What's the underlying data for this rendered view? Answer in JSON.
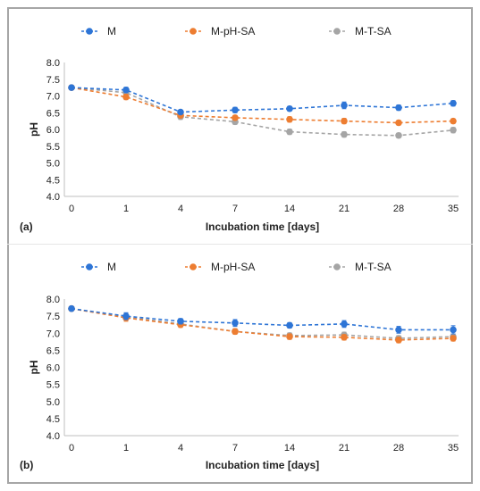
{
  "chart_data": [
    {
      "type": "line",
      "panel_label": "(a)",
      "categories": [
        "0",
        "1",
        "4",
        "7",
        "14",
        "21",
        "28",
        "35"
      ],
      "xlabel": "Incubation time [days]",
      "ylabel": "pH",
      "ylim": [
        4.0,
        8.0
      ],
      "yticks": [
        "4.0",
        "4.5",
        "5.0",
        "5.5",
        "6.0",
        "6.5",
        "7.0",
        "7.5",
        "8.0"
      ],
      "grid": false,
      "legend_position": "top",
      "series": [
        {
          "name": "M",
          "color": "#2e75d6",
          "values": [
            7.25,
            7.18,
            6.52,
            6.58,
            6.62,
            6.72,
            6.65,
            6.78
          ],
          "errors": [
            0.06,
            0.08,
            0.05,
            0.08,
            0.07,
            0.1,
            0.08,
            0.08
          ]
        },
        {
          "name": "M-pH-SA",
          "color": "#ed7d31",
          "values": [
            7.25,
            6.97,
            6.42,
            6.35,
            6.3,
            6.25,
            6.2,
            6.25
          ],
          "errors": [
            0.06,
            0.08,
            0.06,
            0.07,
            0.08,
            0.08,
            0.07,
            0.07
          ]
        },
        {
          "name": "M-T-SA",
          "color": "#a5a5a5",
          "values": [
            7.25,
            7.1,
            6.38,
            6.23,
            5.93,
            5.85,
            5.82,
            5.98
          ],
          "errors": [
            0.06,
            0.1,
            0.08,
            0.08,
            0.08,
            0.08,
            0.07,
            0.08
          ]
        }
      ]
    },
    {
      "type": "line",
      "panel_label": "(b)",
      "categories": [
        "0",
        "1",
        "4",
        "7",
        "14",
        "21",
        "28",
        "35"
      ],
      "xlabel": "Incubation time [days]",
      "ylabel": "pH",
      "ylim": [
        4.0,
        8.0
      ],
      "yticks": [
        "4.0",
        "4.5",
        "5.0",
        "5.5",
        "6.0",
        "6.5",
        "7.0",
        "7.5",
        "8.0"
      ],
      "grid": false,
      "legend_position": "top",
      "series": [
        {
          "name": "M",
          "color": "#2e75d6",
          "values": [
            7.72,
            7.5,
            7.35,
            7.3,
            7.23,
            7.27,
            7.1,
            7.1
          ],
          "errors": [
            0.06,
            0.1,
            0.08,
            0.1,
            0.08,
            0.1,
            0.1,
            0.12
          ]
        },
        {
          "name": "M-pH-SA",
          "color": "#ed7d31",
          "values": [
            7.72,
            7.45,
            7.25,
            7.05,
            6.9,
            6.88,
            6.8,
            6.85
          ],
          "errors": [
            0.06,
            0.1,
            0.08,
            0.08,
            0.08,
            0.08,
            0.08,
            0.08
          ]
        },
        {
          "name": "M-T-SA",
          "color": "#a5a5a5",
          "values": [
            7.72,
            7.48,
            7.27,
            7.05,
            6.93,
            6.95,
            6.85,
            6.9
          ],
          "errors": [
            0.06,
            0.1,
            0.08,
            0.08,
            0.08,
            0.08,
            0.08,
            0.08
          ]
        }
      ]
    }
  ]
}
